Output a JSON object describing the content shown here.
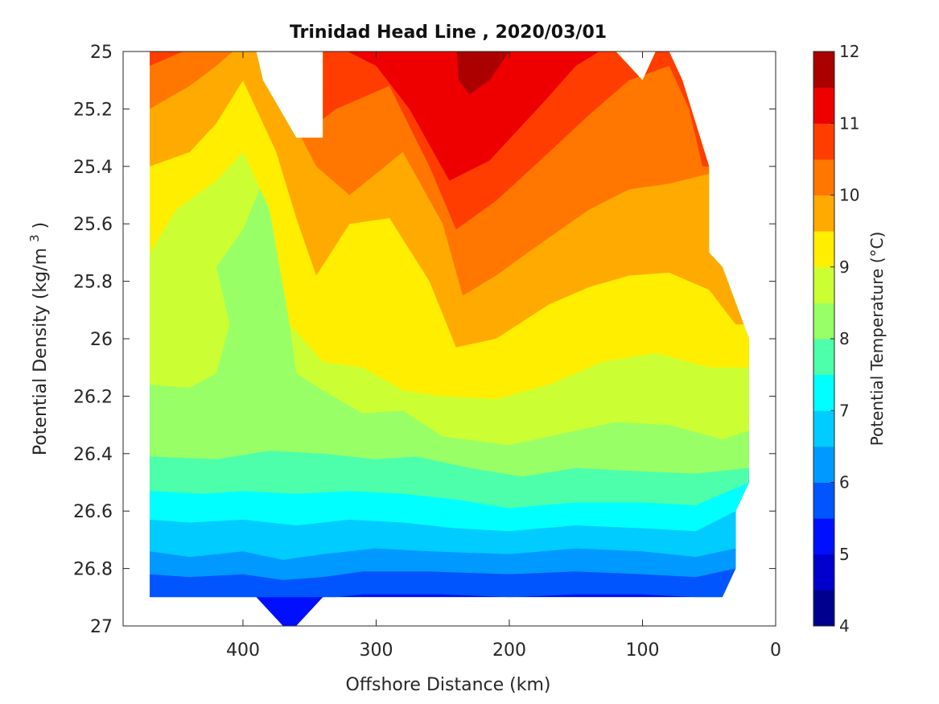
{
  "chart_data": {
    "type": "contourf",
    "title": "Trinidad Head Line , 2020/03/01",
    "xlabel": "Offshore Distance (km)",
    "ylabel_main": "Potential Density (kg/m",
    "ylabel_sup": "3",
    "ylabel_close": ")",
    "colorbar_label": "Potential Temperature (°C)",
    "x_axis": {
      "range": [
        490,
        0
      ],
      "reversed": true,
      "ticks": [
        400,
        300,
        200,
        100,
        0
      ],
      "tick_labels": [
        "400",
        "300",
        "200",
        "100",
        "0"
      ]
    },
    "y_axis": {
      "range": [
        25,
        27
      ],
      "reversed": true,
      "ticks": [
        25,
        25.2,
        25.4,
        25.6,
        25.8,
        26,
        26.2,
        26.4,
        26.6,
        26.8,
        27
      ],
      "tick_labels": [
        "25",
        "25.2",
        "25.4",
        "25.6",
        "25.8",
        "26",
        "26.2",
        "26.4",
        "26.6",
        "26.8",
        "27"
      ]
    },
    "colorbar": {
      "range": [
        4,
        12
      ],
      "levels": [
        4,
        4.5,
        5,
        5.5,
        6,
        6.5,
        7,
        7.5,
        8,
        8.5,
        9,
        9.5,
        10,
        10.5,
        11,
        11.5,
        12
      ],
      "colors": [
        "#00008f",
        "#0000cc",
        "#0010ff",
        "#0055ff",
        "#0099ff",
        "#00ccff",
        "#00ffff",
        "#4dffaa",
        "#99ff66",
        "#ccff33",
        "#ffee00",
        "#ffaa00",
        "#ff7700",
        "#ff3d00",
        "#ee0000",
        "#aa0000"
      ],
      "ticks": [
        4,
        5,
        6,
        7,
        8,
        9,
        10,
        11,
        12
      ],
      "tick_labels": [
        "4",
        "5",
        "6",
        "7",
        "8",
        "9",
        "10",
        "11",
        "12"
      ]
    },
    "contours": [
      {
        "level": 5.5,
        "points": [
          [
            470,
            26.9
          ],
          [
            400,
            26.9
          ],
          [
            330,
            26.9
          ],
          [
            310,
            26.89
          ],
          [
            250,
            26.89
          ],
          [
            200,
            26.9
          ],
          [
            150,
            26.89
          ],
          [
            100,
            26.89
          ],
          [
            60,
            26.9
          ],
          [
            40,
            26.9
          ]
        ]
      },
      {
        "level": 6.0,
        "points": [
          [
            470,
            26.82
          ],
          [
            440,
            26.83
          ],
          [
            400,
            26.82
          ],
          [
            370,
            26.84
          ],
          [
            340,
            26.83
          ],
          [
            310,
            26.81
          ],
          [
            260,
            26.81
          ],
          [
            200,
            26.82
          ],
          [
            150,
            26.81
          ],
          [
            100,
            26.82
          ],
          [
            60,
            26.83
          ],
          [
            30,
            26.8
          ]
        ]
      },
      {
        "level": 6.5,
        "points": [
          [
            470,
            26.74
          ],
          [
            440,
            26.76
          ],
          [
            400,
            26.74
          ],
          [
            370,
            26.77
          ],
          [
            340,
            26.75
          ],
          [
            300,
            26.73
          ],
          [
            260,
            26.74
          ],
          [
            200,
            26.75
          ],
          [
            150,
            26.73
          ],
          [
            100,
            26.74
          ],
          [
            60,
            26.76
          ],
          [
            30,
            26.73
          ]
        ]
      },
      {
        "level": 7.0,
        "points": [
          [
            470,
            26.63
          ],
          [
            440,
            26.64
          ],
          [
            400,
            26.63
          ],
          [
            360,
            26.65
          ],
          [
            320,
            26.63
          ],
          [
            280,
            26.64
          ],
          [
            240,
            26.66
          ],
          [
            200,
            26.67
          ],
          [
            150,
            26.65
          ],
          [
            100,
            26.66
          ],
          [
            60,
            26.67
          ],
          [
            30,
            26.6
          ]
        ]
      },
      {
        "level": 7.5,
        "points": [
          [
            470,
            26.53
          ],
          [
            430,
            26.54
          ],
          [
            400,
            26.53
          ],
          [
            360,
            26.54
          ],
          [
            320,
            26.53
          ],
          [
            280,
            26.54
          ],
          [
            240,
            26.56
          ],
          [
            200,
            26.59
          ],
          [
            150,
            26.57
          ],
          [
            100,
            26.57
          ],
          [
            60,
            26.58
          ],
          [
            20,
            26.5
          ]
        ]
      },
      {
        "level": 8.0,
        "points": [
          [
            470,
            26.41
          ],
          [
            420,
            26.42
          ],
          [
            380,
            26.39
          ],
          [
            340,
            26.4
          ],
          [
            300,
            26.42
          ],
          [
            270,
            26.41
          ],
          [
            230,
            26.45
          ],
          [
            190,
            26.48
          ],
          [
            150,
            26.45
          ],
          [
            110,
            26.46
          ],
          [
            60,
            26.47
          ],
          [
            20,
            26.45
          ]
        ]
      },
      {
        "level": 8.5,
        "points": [
          [
            470,
            26.16
          ],
          [
            440,
            26.17
          ],
          [
            420,
            26.12
          ],
          [
            410,
            25.95
          ],
          [
            420,
            25.75
          ],
          [
            400,
            25.62
          ],
          [
            385,
            25.45
          ],
          [
            370,
            25.78
          ],
          [
            360,
            26.12
          ],
          [
            340,
            26.18
          ],
          [
            310,
            26.26
          ],
          [
            280,
            26.25
          ],
          [
            250,
            26.34
          ],
          [
            200,
            26.37
          ],
          [
            160,
            26.33
          ],
          [
            120,
            26.29
          ],
          [
            80,
            26.3
          ],
          [
            40,
            26.35
          ],
          [
            20,
            26.32
          ]
        ]
      },
      {
        "level": 9.0,
        "points": [
          [
            470,
            25.7
          ],
          [
            450,
            25.55
          ],
          [
            420,
            25.45
          ],
          [
            400,
            25.35
          ],
          [
            380,
            25.55
          ],
          [
            365,
            25.95
          ],
          [
            340,
            26.08
          ],
          [
            310,
            26.1
          ],
          [
            280,
            26.18
          ],
          [
            250,
            26.2
          ],
          [
            210,
            26.21
          ],
          [
            170,
            26.16
          ],
          [
            130,
            26.08
          ],
          [
            90,
            26.05
          ],
          [
            50,
            26.1
          ],
          [
            20,
            26.1
          ]
        ]
      },
      {
        "level": 9.5,
        "points": [
          [
            470,
            25.4
          ],
          [
            440,
            25.35
          ],
          [
            420,
            25.25
          ],
          [
            400,
            25.1
          ],
          [
            375,
            25.35
          ],
          [
            360,
            25.58
          ],
          [
            345,
            25.78
          ],
          [
            320,
            25.6
          ],
          [
            290,
            25.58
          ],
          [
            260,
            25.8
          ],
          [
            240,
            26.03
          ],
          [
            210,
            26.0
          ],
          [
            170,
            25.88
          ],
          [
            140,
            25.82
          ],
          [
            110,
            25.78
          ],
          [
            80,
            25.77
          ],
          [
            50,
            25.83
          ],
          [
            30,
            25.95
          ]
        ]
      },
      {
        "level": 10.0,
        "points": [
          [
            470,
            25.2
          ],
          [
            440,
            25.12
          ],
          [
            420,
            25.05
          ],
          [
            395,
            24.95
          ],
          [
            345,
            25.4
          ],
          [
            320,
            25.5
          ],
          [
            280,
            25.35
          ],
          [
            250,
            25.6
          ],
          [
            235,
            25.85
          ],
          [
            210,
            25.78
          ],
          [
            180,
            25.68
          ],
          [
            140,
            25.55
          ],
          [
            110,
            25.48
          ],
          [
            80,
            25.46
          ],
          [
            45,
            25.42
          ]
        ]
      },
      {
        "level": 10.5,
        "points": [
          [
            470,
            25.05
          ],
          [
            445,
            25.0
          ],
          [
            400,
            24.9
          ],
          [
            380,
            25.05
          ],
          [
            350,
            25.27
          ],
          [
            330,
            25.2
          ],
          [
            290,
            25.12
          ],
          [
            260,
            25.4
          ],
          [
            240,
            25.62
          ],
          [
            210,
            25.52
          ],
          [
            170,
            25.35
          ],
          [
            140,
            25.22
          ],
          [
            110,
            25.1
          ],
          [
            80,
            25.05
          ],
          [
            65,
            25.2
          ],
          [
            55,
            25.4
          ]
        ]
      },
      {
        "level": 11.0,
        "points": [
          [
            470,
            25.0
          ],
          [
            400,
            24.9
          ],
          [
            370,
            24.95
          ],
          [
            330,
            24.98
          ],
          [
            300,
            25.05
          ],
          [
            275,
            25.2
          ],
          [
            245,
            25.45
          ],
          [
            215,
            25.38
          ],
          [
            175,
            25.18
          ],
          [
            150,
            25.05
          ],
          [
            115,
            24.95
          ]
        ]
      },
      {
        "level": 11.5,
        "points": [
          [
            240,
            24.96
          ],
          [
            238,
            25.1
          ],
          [
            230,
            25.15
          ],
          [
            215,
            25.1
          ],
          [
            200,
            25.0
          ]
        ]
      }
    ],
    "data_domain": {
      "outline": [
        [
          470,
          25.0
        ],
        [
          390,
          25.0
        ],
        [
          385,
          25.1
        ],
        [
          360,
          25.3
        ],
        [
          340,
          25.3
        ],
        [
          340,
          25.0
        ],
        [
          120,
          25.0
        ],
        [
          100,
          25.1
        ],
        [
          90,
          25.0
        ],
        [
          80,
          25.0
        ],
        [
          70,
          25.1
        ],
        [
          50,
          25.4
        ],
        [
          50,
          25.7
        ],
        [
          40,
          25.75
        ],
        [
          20,
          26.0
        ],
        [
          20,
          26.5
        ],
        [
          30,
          26.6
        ],
        [
          30,
          26.8
        ],
        [
          40,
          26.9
        ],
        [
          340,
          26.9
        ],
        [
          360,
          27.0
        ],
        [
          370,
          27.0
        ],
        [
          390,
          26.9
        ],
        [
          470,
          26.9
        ]
      ]
    }
  }
}
